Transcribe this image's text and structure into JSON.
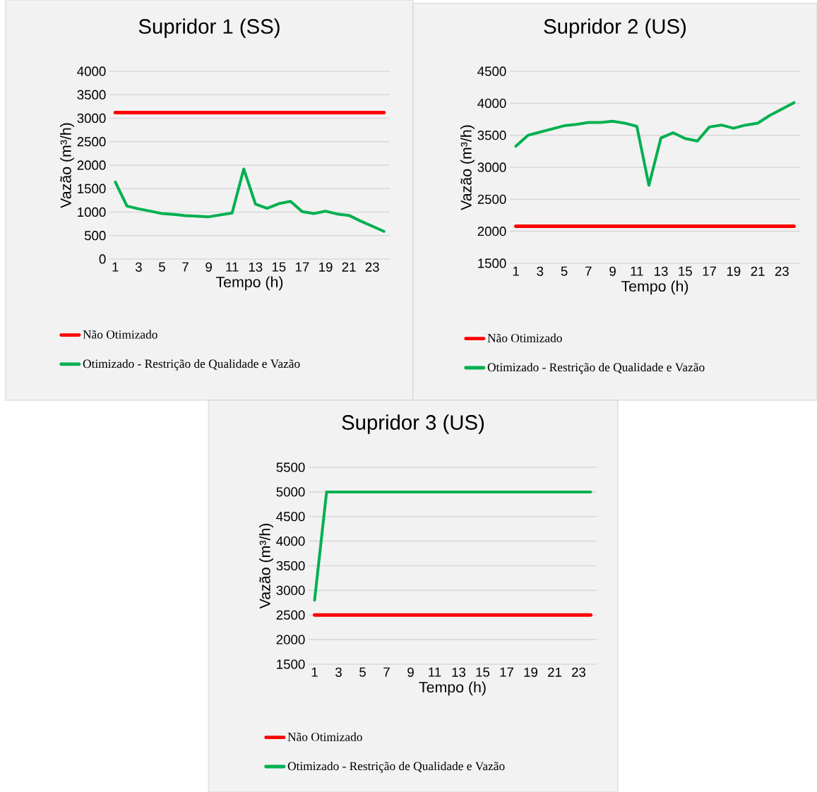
{
  "chart_data": [
    {
      "type": "line",
      "title": "Supridor 1 (SS)",
      "xlabel": "Tempo (h)",
      "ylabel": "Vazão (m³/h)",
      "categories": [
        "1",
        null,
        "3",
        null,
        "5",
        null,
        "7",
        null,
        "9",
        null,
        "11",
        null,
        "13",
        null,
        "15",
        null,
        "17",
        null,
        "19",
        null,
        "21",
        null,
        "23",
        null
      ],
      "series": [
        {
          "name": "Não Otimizado",
          "color": "#ff0000",
          "values": [
            3120,
            3120,
            3120,
            3120,
            3120,
            3120,
            3120,
            3120,
            3120,
            3120,
            3120,
            3120,
            3120,
            3120,
            3120,
            3120,
            3120,
            3120,
            3120,
            3120,
            3120,
            3120,
            3120,
            3120
          ]
        },
        {
          "name": "Otimizado - Restrição de Qualidade e Vazão",
          "color": "#00b050",
          "values": [
            1640,
            1130,
            1070,
            1020,
            970,
            950,
            925,
            915,
            900,
            940,
            980,
            1920,
            1170,
            1080,
            1180,
            1230,
            1010,
            970,
            1020,
            960,
            930,
            810,
            700,
            590
          ]
        }
      ],
      "ylim": [
        0,
        4000
      ],
      "yticks": [
        0,
        500,
        1000,
        1500,
        2000,
        2500,
        3000,
        3500,
        4000
      ],
      "grid": "y",
      "legend": "bottom",
      "marker": "none",
      "line_style": "solid"
    },
    {
      "type": "line",
      "title": "Supridor 2 (US)",
      "xlabel": "Tempo (h)",
      "ylabel": "Vazão (m³/h)",
      "categories": [
        "1",
        null,
        "3",
        null,
        "5",
        null,
        "7",
        null,
        "9",
        null,
        "11",
        null,
        "13",
        null,
        "15",
        null,
        "17",
        null,
        "19",
        null,
        "21",
        null,
        "23",
        null
      ],
      "series": [
        {
          "name": "Não Otimizado",
          "color": "#ff0000",
          "values": [
            2080,
            2080,
            2080,
            2080,
            2080,
            2080,
            2080,
            2080,
            2080,
            2080,
            2080,
            2080,
            2080,
            2080,
            2080,
            2080,
            2080,
            2080,
            2080,
            2080,
            2080,
            2080,
            2080,
            2080
          ]
        },
        {
          "name": "Otimizado - Restrição de Qualidade e Vazão",
          "color": "#00b050",
          "values": [
            3330,
            3500,
            3550,
            3600,
            3650,
            3670,
            3700,
            3700,
            3720,
            3690,
            3640,
            2720,
            3460,
            3540,
            3450,
            3410,
            3630,
            3660,
            3610,
            3660,
            3690,
            3810,
            3910,
            4010
          ]
        }
      ],
      "ylim": [
        1500,
        4500
      ],
      "yticks": [
        1500,
        2000,
        2500,
        3000,
        3500,
        4000,
        4500
      ],
      "grid": "y",
      "legend": "bottom",
      "marker": "none",
      "line_style": "solid"
    },
    {
      "type": "line",
      "title": "Supridor 3 (US)",
      "xlabel": "Tempo (h)",
      "ylabel": "Vazão (m³/h)",
      "categories": [
        "1",
        null,
        "3",
        null,
        "5",
        null,
        "7",
        null,
        "9",
        null,
        "11",
        null,
        "13",
        null,
        "15",
        null,
        "17",
        null,
        "19",
        null,
        "21",
        null,
        "23",
        null
      ],
      "series": [
        {
          "name": "Não Otimizado",
          "color": "#ff0000",
          "values": [
            2500,
            2500,
            2500,
            2500,
            2500,
            2500,
            2500,
            2500,
            2500,
            2500,
            2500,
            2500,
            2500,
            2500,
            2500,
            2500,
            2500,
            2500,
            2500,
            2500,
            2500,
            2500,
            2500,
            2500
          ]
        },
        {
          "name": "Otimizado - Restrição de Qualidade e Vazão",
          "color": "#00b050",
          "values": [
            2800,
            5000,
            5000,
            5000,
            5000,
            5000,
            5000,
            5000,
            5000,
            5000,
            5000,
            5000,
            5000,
            5000,
            5000,
            5000,
            5000,
            5000,
            5000,
            5000,
            5000,
            5000,
            5000,
            5000
          ]
        }
      ],
      "ylim": [
        1500,
        5500
      ],
      "yticks": [
        1500,
        2000,
        2500,
        3000,
        3500,
        4000,
        4500,
        5000,
        5500
      ],
      "grid": "y",
      "legend": "bottom",
      "marker": "none",
      "line_style": "solid"
    }
  ]
}
